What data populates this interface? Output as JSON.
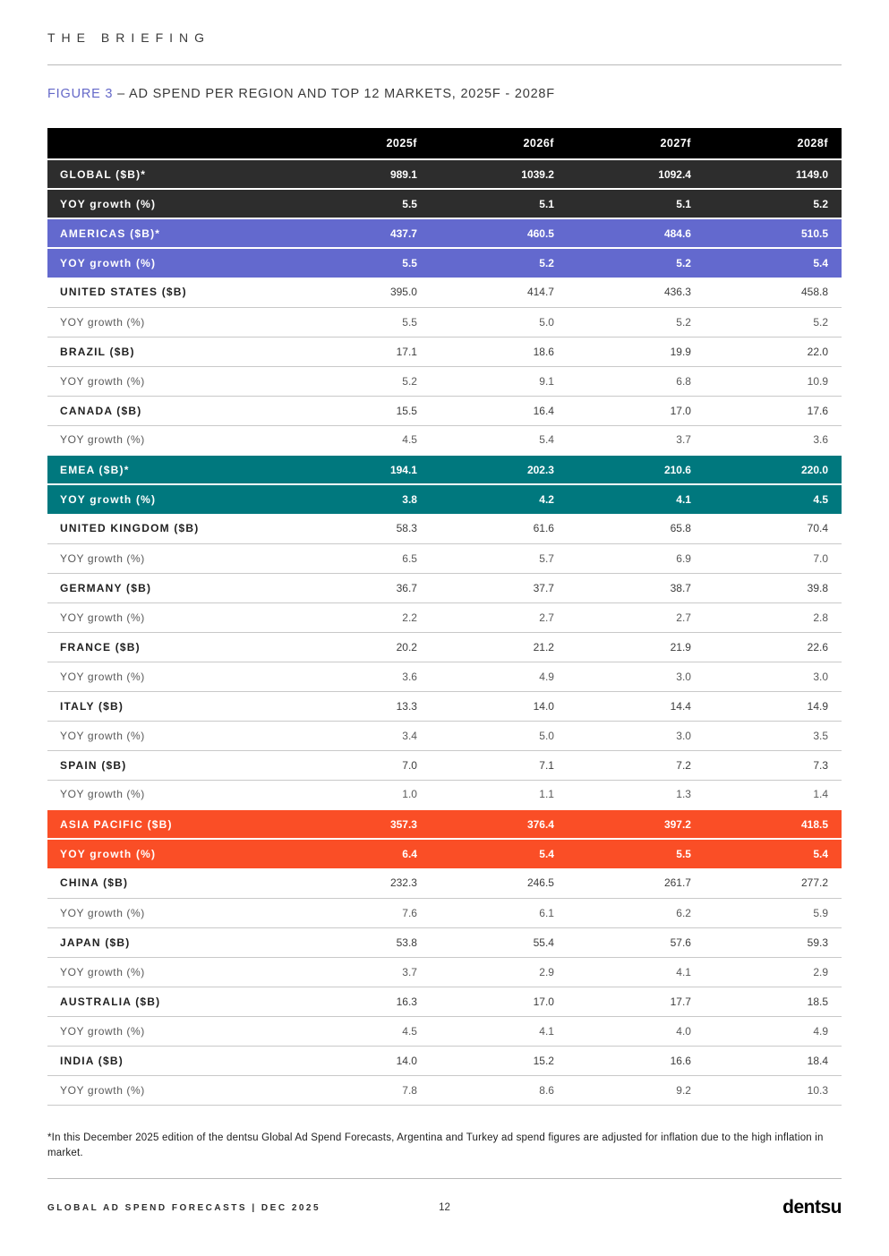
{
  "brand_header": "THE BRIEFING",
  "figure": {
    "label": "FIGURE 3",
    "title": "– AD SPEND PER REGION AND TOP 12 MARKETS, 2025F - 2028F"
  },
  "colors": {
    "header_black": "#000000",
    "global_dark": "#2d2d2d",
    "americas_purple": "#6369ce",
    "emea_teal": "#00787e",
    "apac_orange": "#fa4e26",
    "figure_label_purple": "#6468c8"
  },
  "table": {
    "columns": [
      "2025f",
      "2026f",
      "2027f",
      "2028f"
    ],
    "rows": [
      {
        "label": "GLOBAL ($B)*",
        "style": "dark",
        "values": [
          "989.1",
          "1039.2",
          "1092.4",
          "1149.0"
        ]
      },
      {
        "label": "YOY growth (%)",
        "style": "dark",
        "values": [
          "5.5",
          "5.1",
          "5.1",
          "5.2"
        ]
      },
      {
        "label": "AMERICAS ($B)*",
        "style": "purple",
        "values": [
          "437.7",
          "460.5",
          "484.6",
          "510.5"
        ]
      },
      {
        "label": "YOY growth (%)",
        "style": "purple",
        "values": [
          "5.5",
          "5.2",
          "5.2",
          "5.4"
        ]
      },
      {
        "label": "UNITED STATES ($B)",
        "style": "market",
        "values": [
          "395.0",
          "414.7",
          "436.3",
          "458.8"
        ]
      },
      {
        "label": "YOY growth (%)",
        "style": "yoy",
        "values": [
          "5.5",
          "5.0",
          "5.2",
          "5.2"
        ]
      },
      {
        "label": "BRAZIL ($B)",
        "style": "market",
        "values": [
          "17.1",
          "18.6",
          "19.9",
          "22.0"
        ]
      },
      {
        "label": "YOY growth (%)",
        "style": "yoy",
        "values": [
          "5.2",
          "9.1",
          "6.8",
          "10.9"
        ]
      },
      {
        "label": "CANADA ($B)",
        "style": "market",
        "values": [
          "15.5",
          "16.4",
          "17.0",
          "17.6"
        ]
      },
      {
        "label": "YOY growth (%)",
        "style": "yoy",
        "values": [
          "4.5",
          "5.4",
          "3.7",
          "3.6"
        ]
      },
      {
        "label": "EMEA ($B)*",
        "style": "teal",
        "values": [
          "194.1",
          "202.3",
          "210.6",
          "220.0"
        ]
      },
      {
        "label": "YOY growth (%)",
        "style": "teal",
        "values": [
          "3.8",
          "4.2",
          "4.1",
          "4.5"
        ]
      },
      {
        "label": "UNITED KINGDOM ($B)",
        "style": "market",
        "values": [
          "58.3",
          "61.6",
          "65.8",
          "70.4"
        ]
      },
      {
        "label": "YOY growth (%)",
        "style": "yoy",
        "values": [
          "6.5",
          "5.7",
          "6.9",
          "7.0"
        ]
      },
      {
        "label": "GERMANY ($B)",
        "style": "market",
        "values": [
          "36.7",
          "37.7",
          "38.7",
          "39.8"
        ]
      },
      {
        "label": "YOY growth (%)",
        "style": "yoy",
        "values": [
          "2.2",
          "2.7",
          "2.7",
          "2.8"
        ]
      },
      {
        "label": "FRANCE ($B)",
        "style": "market",
        "values": [
          "20.2",
          "21.2",
          "21.9",
          "22.6"
        ]
      },
      {
        "label": "YOY growth (%)",
        "style": "yoy",
        "values": [
          "3.6",
          "4.9",
          "3.0",
          "3.0"
        ]
      },
      {
        "label": "ITALY ($B)",
        "style": "market",
        "values": [
          "13.3",
          "14.0",
          "14.4",
          "14.9"
        ]
      },
      {
        "label": "YOY growth (%)",
        "style": "yoy",
        "values": [
          "3.4",
          "5.0",
          "3.0",
          "3.5"
        ]
      },
      {
        "label": "SPAIN ($B)",
        "style": "market",
        "values": [
          "7.0",
          "7.1",
          "7.2",
          "7.3"
        ]
      },
      {
        "label": "YOY growth (%)",
        "style": "yoy",
        "values": [
          "1.0",
          "1.1",
          "1.3",
          "1.4"
        ]
      },
      {
        "label": "ASIA PACIFIC ($B)",
        "style": "orange",
        "values": [
          "357.3",
          "376.4",
          "397.2",
          "418.5"
        ]
      },
      {
        "label": "YOY growth (%)",
        "style": "orange",
        "values": [
          "6.4",
          "5.4",
          "5.5",
          "5.4"
        ]
      },
      {
        "label": "CHINA ($B)",
        "style": "market",
        "values": [
          "232.3",
          "246.5",
          "261.7",
          "277.2"
        ]
      },
      {
        "label": "YOY growth (%)",
        "style": "yoy",
        "values": [
          "7.6",
          "6.1",
          "6.2",
          "5.9"
        ]
      },
      {
        "label": "JAPAN ($B)",
        "style": "market",
        "values": [
          "53.8",
          "55.4",
          "57.6",
          "59.3"
        ]
      },
      {
        "label": "YOY growth (%)",
        "style": "yoy",
        "values": [
          "3.7",
          "2.9",
          "4.1",
          "2.9"
        ]
      },
      {
        "label": "AUSTRALIA ($B)",
        "style": "market",
        "values": [
          "16.3",
          "17.0",
          "17.7",
          "18.5"
        ]
      },
      {
        "label": "YOY growth (%)",
        "style": "yoy",
        "values": [
          "4.5",
          "4.1",
          "4.0",
          "4.9"
        ]
      },
      {
        "label": "INDIA ($B)",
        "style": "market",
        "values": [
          "14.0",
          "15.2",
          "16.6",
          "18.4"
        ]
      },
      {
        "label": "YOY growth (%)",
        "style": "yoy",
        "values": [
          "7.8",
          "8.6",
          "9.2",
          "10.3"
        ]
      }
    ]
  },
  "footnote": "*In this December 2025 edition of the dentsu Global Ad Spend Forecasts, Argentina and Turkey ad spend figures are adjusted for inflation due to the high inflation in market.",
  "footer": {
    "left_text": "GLOBAL AD SPEND FORECASTS | DEC 2025",
    "page_number": "12",
    "logo_text": "dentsu"
  }
}
